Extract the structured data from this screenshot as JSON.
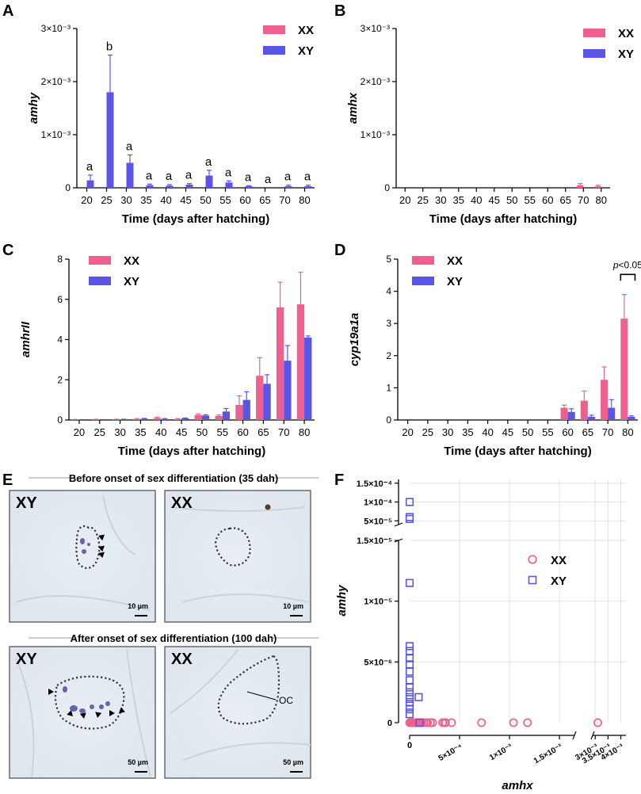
{
  "colors": {
    "xx": "#f0608e",
    "xy": "#5a55e6",
    "xx_light": "#f7a6c2",
    "xy_light": "#9d9bf0"
  },
  "shared": {
    "categories": [
      "20",
      "25",
      "30",
      "35",
      "40",
      "45",
      "50",
      "55",
      "60",
      "65",
      "70",
      "80"
    ],
    "xlabel": "Time (days after hatching)",
    "legend_xx": "XX",
    "legend_xy": "XY"
  },
  "panels": {
    "A": {
      "letter": "A"
    },
    "B": {
      "letter": "B"
    },
    "C": {
      "letter": "C"
    },
    "D": {
      "letter": "D"
    },
    "E": {
      "letter": "E",
      "before_title": "Before onset of sex differentiation (35 dah)",
      "after_title": "After onset of sex differentiation (100 dah)",
      "label_xy": "XY",
      "label_xx": "XX",
      "scale_small": "10 µm",
      "scale_large": "50 µm",
      "oc_label": "OC"
    },
    "F": {
      "letter": "F"
    }
  },
  "chart_data": [
    {
      "panel": "A",
      "type": "bar",
      "ylabel": "amhy",
      "ylim": [
        0,
        0.003
      ],
      "yticks": [
        "0",
        "1×10⁻³",
        "2×10⁻³",
        "3×10⁻³"
      ],
      "series": [
        {
          "name": "XX",
          "values": [
            0,
            0,
            0,
            0,
            0,
            0,
            0,
            0,
            0,
            0,
            0,
            0
          ],
          "errors": [
            0,
            0,
            0,
            0,
            0,
            0,
            0,
            0,
            0,
            0,
            0,
            0
          ]
        },
        {
          "name": "XY",
          "values": [
            0.00014,
            0.0018,
            0.00047,
            5e-05,
            4e-05,
            6e-05,
            0.00023,
            0.0001,
            3e-05,
            0.0,
            3e-05,
            3e-05
          ],
          "errors": [
            0.0001,
            0.0007,
            0.00015,
            2e-05,
            2e-05,
            2e-05,
            0.0001,
            3e-05,
            1e-05,
            0.0,
            2e-05,
            2e-05
          ]
        }
      ],
      "annotations": [
        "a",
        "b",
        "a",
        "a",
        "a",
        "a",
        "a",
        "a",
        "a",
        "a",
        "a",
        "a"
      ]
    },
    {
      "panel": "B",
      "type": "bar",
      "ylabel": "amhx",
      "ylim": [
        0,
        0.003
      ],
      "yticks": [
        "0",
        "1×10⁻³",
        "2×10⁻³",
        "3×10⁻³"
      ],
      "series": [
        {
          "name": "XX",
          "values": [
            0,
            0,
            0,
            0,
            0,
            0,
            0,
            0,
            0,
            0,
            5e-05,
            3e-05
          ],
          "errors": [
            0,
            0,
            0,
            0,
            0,
            0,
            0,
            0,
            0,
            0,
            3e-05,
            2e-05
          ]
        },
        {
          "name": "XY",
          "values": [
            0,
            0,
            0,
            0,
            0,
            0,
            0,
            0,
            0,
            0,
            0,
            0
          ],
          "errors": [
            0,
            0,
            0,
            0,
            0,
            0,
            0,
            0,
            0,
            0,
            0,
            0
          ]
        }
      ]
    },
    {
      "panel": "C",
      "type": "bar",
      "ylabel": "amhrII",
      "ylim": [
        0,
        8
      ],
      "yticks": [
        "0",
        "2",
        "4",
        "6",
        "8"
      ],
      "series": [
        {
          "name": "XX",
          "values": [
            0.02,
            0.03,
            0.03,
            0.05,
            0.1,
            0.05,
            0.25,
            0.2,
            0.75,
            2.2,
            5.6,
            5.75
          ],
          "errors": [
            0.01,
            0.01,
            0.01,
            0.02,
            0.04,
            0.02,
            0.05,
            0.05,
            0.45,
            0.9,
            1.25,
            1.6
          ]
        },
        {
          "name": "XY",
          "values": [
            0,
            0,
            0.03,
            0.06,
            0.05,
            0.08,
            0.22,
            0.42,
            1.0,
            1.8,
            2.95,
            4.1
          ],
          "errors": [
            0,
            0,
            0.01,
            0.02,
            0.02,
            0.02,
            0.04,
            0.15,
            0.4,
            0.45,
            0.75,
            0.08
          ]
        }
      ]
    },
    {
      "panel": "D",
      "type": "bar",
      "ylabel": "cyp19a1a",
      "ylim": [
        0,
        5
      ],
      "yticks": [
        "0",
        "1",
        "2",
        "3",
        "4",
        "5"
      ],
      "series": [
        {
          "name": "XX",
          "values": [
            0,
            0,
            0,
            0,
            0,
            0,
            0,
            0,
            0.38,
            0.6,
            1.25,
            3.15
          ],
          "errors": [
            0,
            0,
            0,
            0,
            0,
            0,
            0,
            0,
            0.08,
            0.3,
            0.4,
            0.75
          ]
        },
        {
          "name": "XY",
          "values": [
            0,
            0,
            0,
            0,
            0,
            0,
            0,
            0,
            0.25,
            0.1,
            0.38,
            0.1
          ],
          "errors": [
            0,
            0,
            0,
            0,
            0,
            0,
            0,
            0,
            0.1,
            0.05,
            0.25,
            0.03
          ]
        }
      ],
      "significance": {
        "label": "p<0.05",
        "category": "80"
      }
    },
    {
      "panel": "F",
      "type": "scatter",
      "xlabel": "amhx",
      "ylabel": "amhy",
      "xticks": [
        "0",
        "5×10⁻⁴",
        "1×10⁻³",
        "1.5×10⁻³",
        "3×10⁻³",
        "3.5×10⁻³",
        "4×10⁻³"
      ],
      "yticks_upper": [
        "5×10⁻⁵",
        "1×10⁻⁴",
        "1.5×10⁻⁴"
      ],
      "yticks_lower": [
        "0",
        "5×10⁻⁶",
        "1×10⁻⁵",
        "1.5×10⁻⁵"
      ],
      "series": [
        {
          "name": "XX",
          "marker": "circle",
          "x": [
            0,
            1e-05,
            2e-05,
            3e-05,
            4e-05,
            5e-05,
            6e-05,
            7e-05,
            8e-05,
            9e-05,
            0.0001,
            0.00012,
            0.00014,
            0.00017,
            0.00018,
            0.00021,
            0.00023,
            0.00033,
            0.00035,
            0.00036,
            0.00042,
            0.00072,
            0.00104,
            0.00118,
            0.0031
          ],
          "y": [
            0,
            0,
            0,
            0,
            0,
            0,
            0,
            0,
            0,
            0,
            0,
            0,
            0,
            0,
            0,
            0,
            0,
            0,
            0,
            0,
            0,
            0,
            0,
            0,
            0
          ]
        },
        {
          "name": "XY",
          "marker": "square",
          "x": [
            0,
            0,
            0,
            0,
            0,
            0,
            0,
            0,
            0,
            0,
            0,
            0,
            0,
            0,
            0,
            0,
            0,
            9e-05,
            0.0001
          ],
          "y": [
            0.0001,
            6e-05,
            5.5e-05,
            1.15e-05,
            6.3e-06,
            5.9e-06,
            5.3e-06,
            4.8e-06,
            4.2e-06,
            3.5e-06,
            2.9e-06,
            2.5e-06,
            2.1e-06,
            1.7e-06,
            1.4e-06,
            1.1e-06,
            7e-07,
            2.1e-06,
            0
          ]
        }
      ]
    }
  ]
}
